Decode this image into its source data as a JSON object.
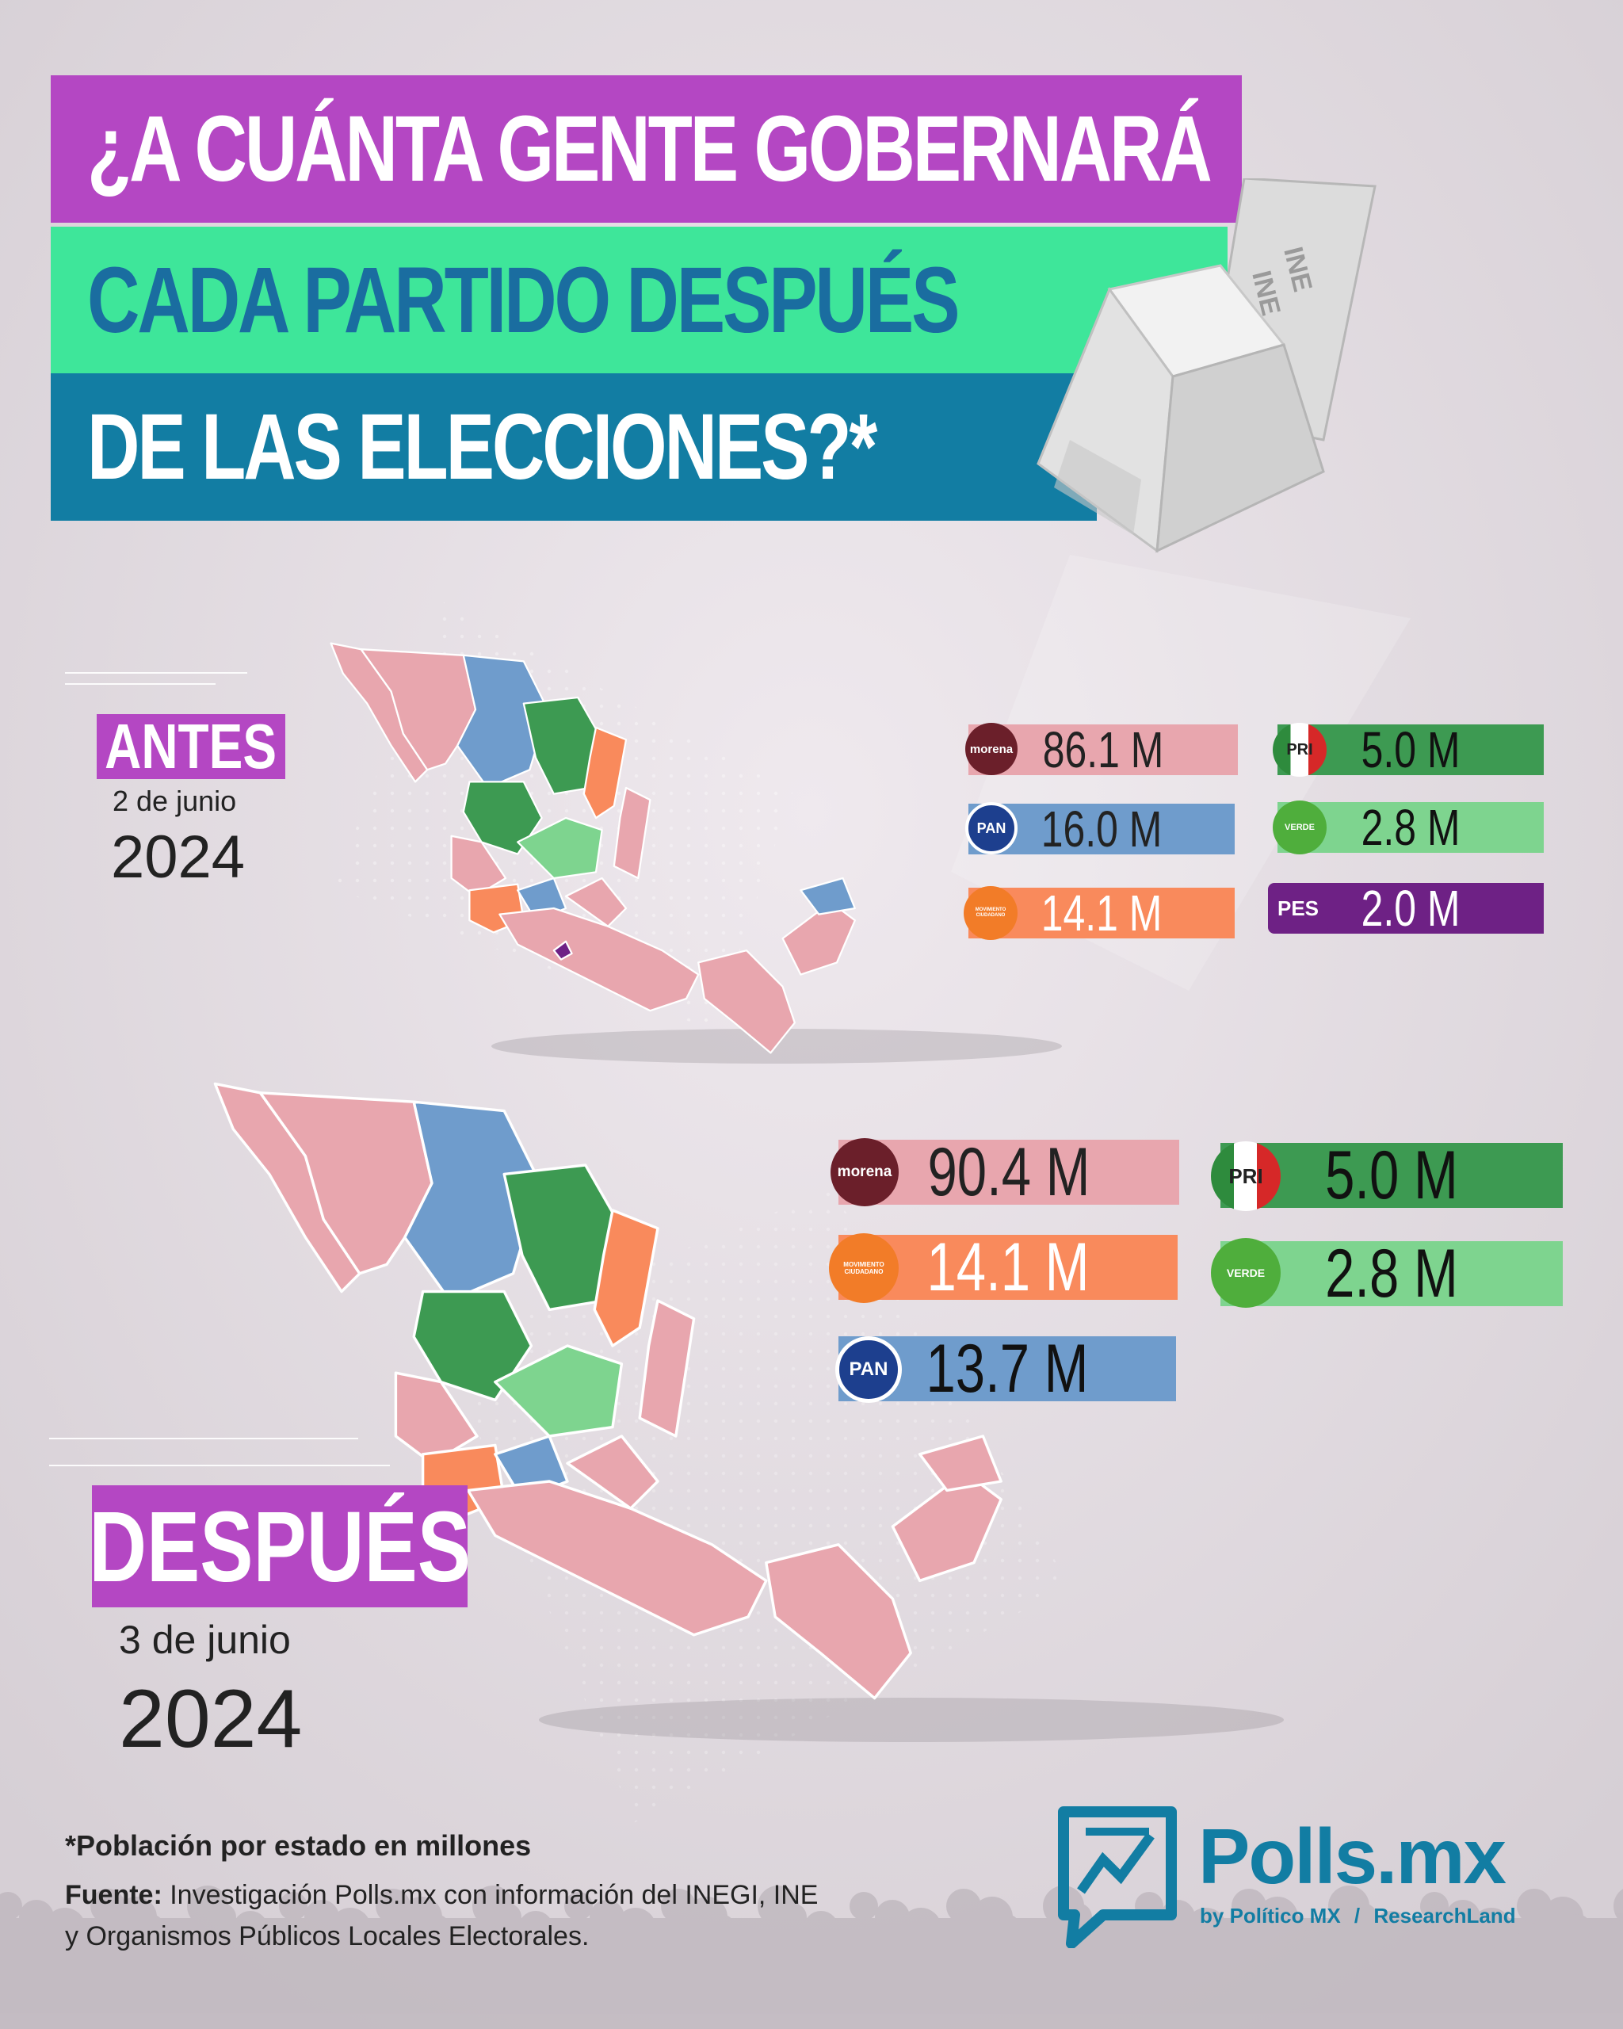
{
  "title": {
    "line1": "¿A CUÁNTA GENTE GOBERNARÁ",
    "line2": "CADA PARTIDO DESPUÉS",
    "line3": "DE LAS ELECCIONES?*"
  },
  "ballot_box": {
    "print": "INE"
  },
  "colors": {
    "morena": "#e8a6ae",
    "pan": "#6f9ccc",
    "mc": "#f98a5c",
    "pri": "#3d9a52",
    "verde": "#7ed48f",
    "pes": "#6e2185",
    "tag": "#b447c3"
  },
  "before": {
    "label": "ANTES",
    "day": "2 de junio",
    "year": "2024"
  },
  "after": {
    "label": "DESPUÉS",
    "day": "3 de junio",
    "year": "2024"
  },
  "chart_data": [
    {
      "type": "bar",
      "title": "ANTES",
      "unit": "M",
      "series": [
        {
          "party": "morena",
          "logo_text": "morena",
          "value": 86.1,
          "label": "86.1 M"
        },
        {
          "party": "PAN",
          "logo_text": "PAN",
          "value": 16.0,
          "label": "16.0 M"
        },
        {
          "party": "MOVIMIENTO CIUDADANO",
          "logo_text": "MOVIMIENTO CIUDADANO",
          "value": 14.1,
          "label": "14.1 M"
        },
        {
          "party": "PRI",
          "logo_text": "PRI",
          "value": 5.0,
          "label": "5.0 M"
        },
        {
          "party": "VERDE",
          "logo_text": "VERDE",
          "value": 2.8,
          "label": "2.8 M"
        },
        {
          "party": "PES",
          "logo_text": "PES",
          "value": 2.0,
          "label": "2.0 M"
        }
      ]
    },
    {
      "type": "bar",
      "title": "DESPUÉS",
      "unit": "M",
      "series": [
        {
          "party": "morena",
          "logo_text": "morena",
          "value": 90.4,
          "label": "90.4 M"
        },
        {
          "party": "MOVIMIENTO CIUDADANO",
          "logo_text": "MOVIMIENTO CIUDADANO",
          "value": 14.1,
          "label": "14.1 M"
        },
        {
          "party": "PAN",
          "logo_text": "PAN",
          "value": 13.7,
          "label": "13.7 M"
        },
        {
          "party": "PRI",
          "logo_text": "PRI",
          "value": 5.0,
          "label": "5.0 M"
        },
        {
          "party": "VERDE",
          "logo_text": "VERDE",
          "value": 2.8,
          "label": "2.8 M"
        }
      ]
    }
  ],
  "footer": {
    "note": "*Población por estado en millones",
    "source_label": "Fuente:",
    "source_text": "Investigación Polls.mx con información del INEGI, INE",
    "source_text2": "y Organismos Públicos Locales Electorales."
  },
  "brand": {
    "name": "Polls.mx",
    "by": "by Político MX",
    "sep": "/",
    "partner": "ResearchLand"
  }
}
